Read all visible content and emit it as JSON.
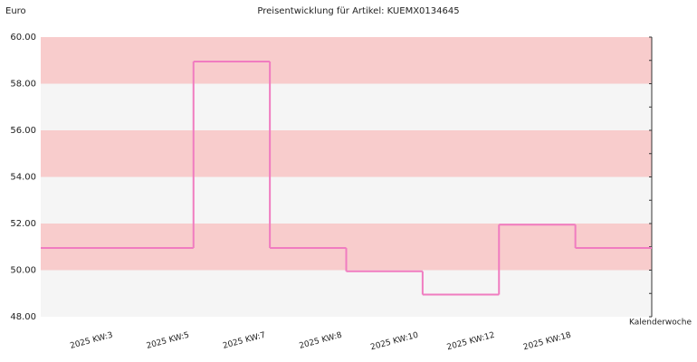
{
  "chart_data": {
    "type": "step",
    "title": "Preisentwicklung für Artikel: KUEMX0134645",
    "ylabel": "Euro",
    "xlabel": "Kalenderwoche",
    "categories": [
      "2025 KW:3",
      "2025 KW:5",
      "2025 KW:7",
      "2025 KW:8",
      "2025 KW:10",
      "2025 KW:12",
      "2025 KW:18"
    ],
    "values": [
      50.95,
      58.95,
      50.95,
      49.95,
      48.95,
      51.95,
      50.95
    ],
    "color": "#f07cc0",
    "band_colors": [
      "#f8cccc",
      "#f5f5f5"
    ],
    "ylim": [
      48,
      60
    ],
    "yticks": [
      {
        "value": 48,
        "label": "48.00"
      },
      {
        "value": 50,
        "label": "50.00"
      },
      {
        "value": 52,
        "label": "52.00"
      },
      {
        "value": 54,
        "label": "54.00"
      },
      {
        "value": 56,
        "label": "56.00"
      },
      {
        "value": 58,
        "label": "58.00"
      },
      {
        "value": 60,
        "label": "60.00"
      }
    ]
  }
}
